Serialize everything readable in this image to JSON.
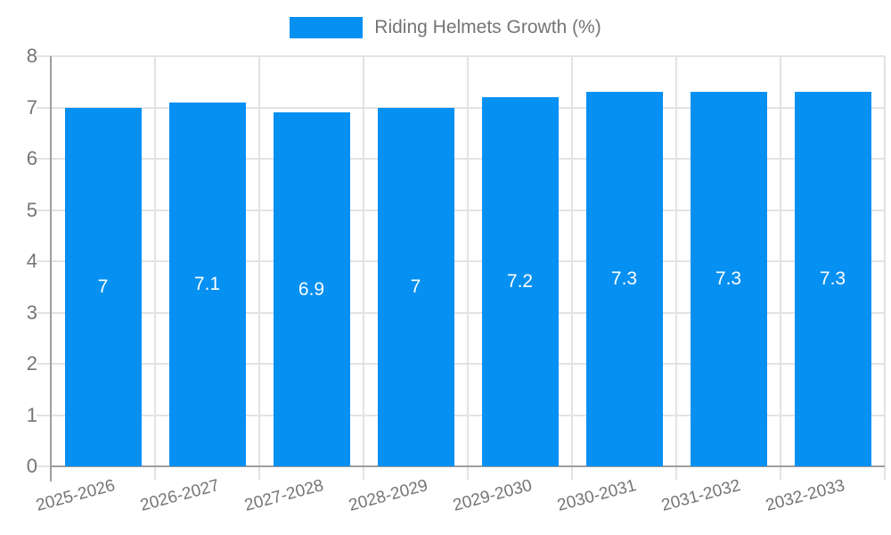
{
  "chart_data": {
    "type": "bar",
    "title": "Riding Helmets Growth (%)",
    "legend": {
      "label": "Riding Helmets Growth (%)",
      "position": "top-center",
      "swatch_color": "#0590f2"
    },
    "categories": [
      "2025-2026",
      "2026-2027",
      "2027-2028",
      "2028-2029",
      "2029-2030",
      "2030-2031",
      "2031-2032",
      "2032-2033"
    ],
    "series": [
      {
        "name": "Riding Helmets Growth (%)",
        "values": [
          7,
          7.1,
          6.9,
          7,
          7.2,
          7.3,
          7.3,
          7.3
        ],
        "value_labels": [
          "7",
          "7.1",
          "6.9",
          "7",
          "7.2",
          "7.3",
          "7.3",
          "7.3"
        ]
      }
    ],
    "xlabel": "",
    "ylabel": "",
    "ylim": [
      0,
      8
    ],
    "yticks": [
      0,
      1,
      2,
      3,
      4,
      5,
      6,
      7,
      8
    ],
    "grid": "on",
    "value_labels_position": "center-of-bar",
    "xtick_rotation_deg": -15,
    "colors": {
      "bar": "#0590f2",
      "gridline": "#e3e3e3",
      "axis": "#9e9e9e",
      "tick_text": "#757575",
      "value_text": "#ffffff",
      "background": "#ffffff"
    }
  }
}
